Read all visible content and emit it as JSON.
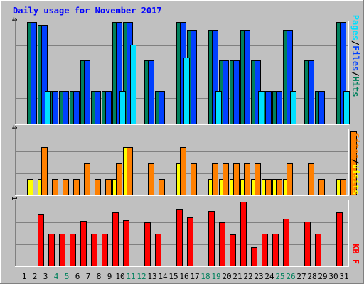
{
  "chart_data": {
    "type": "bar",
    "title": "Daily usage for November 2017",
    "categories": [
      "1",
      "2",
      "3",
      "4",
      "5",
      "6",
      "7",
      "8",
      "9",
      "10",
      "11",
      "12",
      "13",
      "14",
      "15",
      "16",
      "17",
      "18",
      "19",
      "20",
      "21",
      "22",
      "23",
      "24",
      "25",
      "26",
      "27",
      "28",
      "29",
      "30",
      "31"
    ],
    "weekend_days": [
      "4",
      "5",
      "11",
      "12",
      "18",
      "19",
      "25",
      "26"
    ],
    "panels": [
      {
        "id": "hits",
        "y_max": 4,
        "y_max_label": "4",
        "legend": [
          "Pages",
          "/",
          "Files",
          "/",
          "Hits"
        ],
        "series": [
          {
            "name": "Hits",
            "color": "#00805c",
            "values": [
              4,
              3.9,
              1.3,
              1.3,
              1.3,
              2.5,
              1.3,
              1.3,
              4,
              4,
              0,
              2.5,
              1.3,
              0,
              4,
              3.7,
              0,
              3.7,
              2.5,
              2.5,
              3.7,
              2.5,
              1.3,
              1.3,
              3.7,
              0,
              2.5,
              1.3,
              0,
              4,
              0
            ]
          },
          {
            "name": "Files",
            "color": "#0040ff",
            "values": [
              4,
              3.9,
              1.3,
              1.3,
              1.3,
              2.5,
              1.3,
              1.3,
              4,
              4,
              0,
              2.5,
              1.3,
              0,
              4,
              3.7,
              0,
              3.7,
              2.5,
              2.5,
              3.7,
              2.5,
              1.3,
              1.3,
              3.7,
              0,
              2.5,
              1.3,
              0,
              4,
              0
            ]
          },
          {
            "name": "Pages",
            "color": "#00e0ff",
            "values": [
              0,
              1.3,
              0,
              0,
              0,
              0,
              0,
              0,
              1.3,
              3.1,
              0,
              0,
              0,
              0,
              2.6,
              0,
              0,
              1.3,
              0,
              0,
              0,
              1.3,
              0,
              0,
              1.3,
              0,
              0,
              0,
              0,
              1.3,
              0
            ]
          }
        ]
      },
      {
        "id": "visits",
        "y_max": 4,
        "y_max_label": "4",
        "legend": [
          "Sites",
          "/",
          "Visits"
        ],
        "series": [
          {
            "name": "Visits",
            "color": "#ffff00",
            "values": [
              1,
              1,
              0,
              0,
              0,
              0,
              0,
              0,
              1,
              3,
              0,
              0,
              0,
              0,
              2,
              0,
              0,
              1,
              1,
              1,
              1,
              1,
              1,
              1,
              1,
              0,
              0,
              0,
              0,
              1,
              0
            ]
          },
          {
            "name": "Sites",
            "color": "#ff8000",
            "values": [
              0,
              3,
              1,
              1,
              1,
              2,
              1,
              1,
              2,
              3,
              0,
              2,
              1,
              0,
              3,
              2,
              0,
              2,
              2,
              2,
              2,
              2,
              1,
              1,
              2,
              0,
              2,
              1,
              0,
              1,
              4
            ]
          }
        ]
      },
      {
        "id": "kbytes",
        "y_max": 1,
        "y_max_label": "1",
        "legend": [
          "KB",
          "F"
        ],
        "series": [
          {
            "name": "KB F",
            "color": "#ff0000",
            "values": [
              0,
              0.8,
              0.5,
              0.5,
              0.5,
              0.7,
              0.5,
              0.5,
              0.83,
              0.71,
              0,
              0.68,
              0.5,
              0,
              0.88,
              0.76,
              0,
              0.86,
              0.68,
              0.49,
              1,
              0.3,
              0.5,
              0.5,
              0.74,
              0,
              0.69,
              0.5,
              0,
              0.83,
              0
            ]
          }
        ]
      }
    ],
    "colors": {
      "background": "#c0c0c0",
      "frame_light": "#ffffff",
      "frame_dark": "#808080",
      "gridline": "#808080",
      "title": "#0000ff",
      "weekday_label": "#000000",
      "weekend_label": "#00805c",
      "legend_separator": "#000000"
    }
  }
}
